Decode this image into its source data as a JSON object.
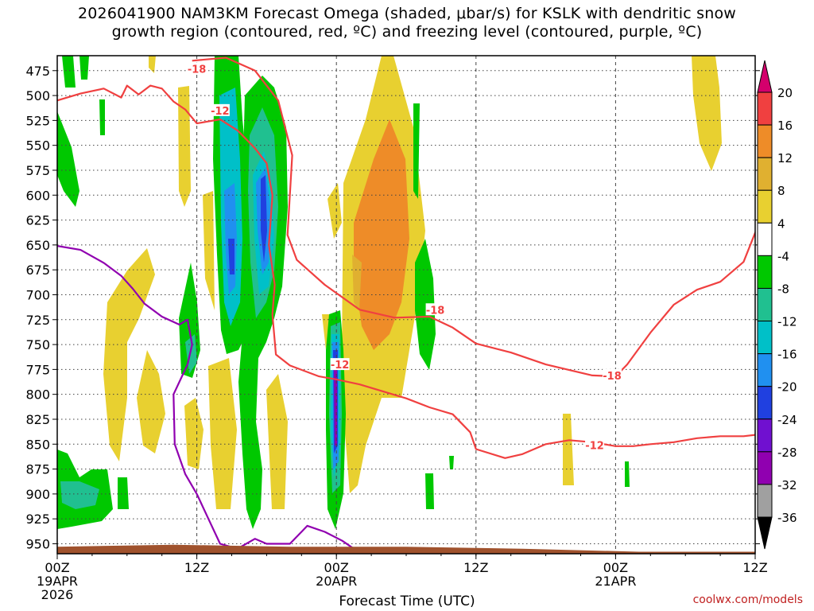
{
  "chart_data": {
    "type": "heatmap",
    "title_line1": "2026041900 NAM3KM Forecast Omega (shaded, μbar/s) for KSLK with dendritic snow",
    "title_line2": "growth region (contoured, red, ºC) and freezing level (contoured, purple, ºC)",
    "xlabel": "Forecast Time (UTC)",
    "ylabel": "",
    "credit": "coolwx.com/models",
    "x_unit": "forecast hour from 2026041900",
    "xlim": [
      0,
      60
    ],
    "ylim": [
      960,
      460
    ],
    "y_ticks": [
      475,
      500,
      525,
      550,
      575,
      600,
      625,
      650,
      675,
      700,
      725,
      750,
      775,
      800,
      825,
      850,
      875,
      900,
      925,
      950
    ],
    "x_ticks": [
      {
        "hour": 0,
        "line1": "00Z",
        "line2": "19APR",
        "line3": "2026"
      },
      {
        "hour": 12,
        "line1": "12Z",
        "line2": "",
        "line3": ""
      },
      {
        "hour": 24,
        "line1": "00Z",
        "line2": "20APR",
        "line3": ""
      },
      {
        "hour": 36,
        "line1": "12Z",
        "line2": "",
        "line3": ""
      },
      {
        "hour": 48,
        "line1": "00Z",
        "line2": "21APR",
        "line3": ""
      },
      {
        "hour": 60,
        "line1": "12Z",
        "line2": "",
        "line3": ""
      }
    ],
    "grid": true,
    "colorbar": {
      "labels": [
        "20",
        "16",
        "12",
        "8",
        "4",
        "-4",
        "-8",
        "-12",
        "-16",
        "-20",
        "-24",
        "-28",
        "-32",
        "-36"
      ],
      "colors": [
        "#d4006c",
        "#f04040",
        "#ee8c28",
        "#e0b030",
        "#e8d030",
        "#ffffff",
        "#00c800",
        "#20c090",
        "#00c0c8",
        "#2090f0",
        "#2040e0",
        "#7010d0",
        "#9000b0",
        "#a0a0a0",
        "#000000"
      ]
    },
    "omega_features": [
      {
        "hour": 15.0,
        "p_top": 470,
        "p_bottom": 930,
        "min": -20,
        "color": "#2040e0"
      },
      {
        "hour": 17.5,
        "p_top": 490,
        "p_bottom": 940,
        "min": -24,
        "color": "#2040e0"
      },
      {
        "hour": 24.0,
        "p_top": 690,
        "p_bottom": 925,
        "min": -28,
        "color": "#9000b0"
      },
      {
        "hour": 26.5,
        "p_top": 560,
        "p_bottom": 870,
        "max": 12,
        "color": "#ee8c28"
      },
      {
        "hour": 57.0,
        "p_top": 470,
        "p_bottom": 560,
        "max": 4,
        "color": "#e8d030"
      },
      {
        "hour": 1.8,
        "p_top": 870,
        "p_bottom": 920,
        "min": -12,
        "color": "#20c090"
      }
    ],
    "series": [
      {
        "name": "-18",
        "color": "#f04040",
        "points": [
          [
            11.6,
            465
          ],
          [
            14.5,
            462
          ],
          [
            17,
            475
          ],
          [
            19,
            505
          ],
          [
            20.2,
            560
          ],
          [
            19.8,
            640
          ],
          [
            20.6,
            665
          ],
          [
            23,
            690
          ],
          [
            26,
            715
          ],
          [
            29,
            723
          ],
          [
            32,
            722
          ],
          [
            34,
            733
          ],
          [
            36,
            749
          ],
          [
            39,
            758
          ],
          [
            42,
            770
          ],
          [
            46,
            781
          ],
          [
            48,
            782
          ],
          [
            49,
            770
          ],
          [
            51,
            738
          ],
          [
            53,
            710
          ],
          [
            55,
            695
          ],
          [
            57,
            687
          ],
          [
            59,
            667
          ],
          [
            60.5,
            623
          ]
        ],
        "labels": [
          {
            "hour": 12,
            "p": 473,
            "text": "-18"
          },
          {
            "hour": 32.5,
            "p": 715,
            "text": "-18"
          },
          {
            "hour": 47.7,
            "p": 781,
            "text": "-18"
          }
        ]
      },
      {
        "name": "-12",
        "color": "#f04040",
        "points": [
          [
            0,
            505
          ],
          [
            2,
            498
          ],
          [
            4,
            493
          ],
          [
            5.5,
            502
          ],
          [
            6,
            490
          ],
          [
            7,
            499
          ],
          [
            8,
            490
          ],
          [
            9,
            493
          ],
          [
            10,
            506
          ],
          [
            11,
            514
          ],
          [
            12,
            528
          ],
          [
            14,
            524
          ],
          [
            15.5,
            535
          ],
          [
            17,
            553
          ],
          [
            18,
            568
          ],
          [
            18.5,
            600
          ],
          [
            18.2,
            650
          ],
          [
            18.7,
            690
          ],
          [
            18.5,
            720
          ],
          [
            18.8,
            760
          ],
          [
            20,
            771
          ],
          [
            22.5,
            782
          ],
          [
            24,
            785
          ],
          [
            26,
            790
          ],
          [
            28,
            797
          ],
          [
            30,
            804
          ],
          [
            32,
            813
          ],
          [
            34,
            820
          ],
          [
            35.5,
            838
          ],
          [
            36,
            855
          ],
          [
            38.5,
            864
          ],
          [
            40,
            860
          ],
          [
            42,
            850
          ],
          [
            44,
            846
          ],
          [
            46,
            848
          ],
          [
            48,
            852
          ],
          [
            49.5,
            852
          ],
          [
            51,
            850
          ],
          [
            53,
            848
          ],
          [
            55,
            844
          ],
          [
            57,
            842
          ],
          [
            59,
            842
          ],
          [
            60.5,
            840
          ]
        ],
        "labels": [
          {
            "hour": 14,
            "p": 515,
            "text": "-12"
          },
          {
            "hour": 24.3,
            "p": 770,
            "text": "-12"
          },
          {
            "hour": 46.2,
            "p": 851,
            "text": "-12"
          }
        ]
      },
      {
        "name": "freezing level",
        "color": "#9000b0",
        "points": [
          [
            0,
            651
          ],
          [
            2,
            655
          ],
          [
            4,
            668
          ],
          [
            5.5,
            681
          ],
          [
            6.5,
            694
          ],
          [
            7.5,
            709
          ],
          [
            9,
            722
          ],
          [
            10.5,
            730
          ],
          [
            11.2,
            725
          ],
          [
            11.6,
            750
          ],
          [
            11.2,
            770
          ],
          [
            10,
            800
          ],
          [
            10.1,
            850
          ],
          [
            11,
            880
          ],
          [
            12,
            900
          ],
          [
            13,
            925
          ],
          [
            14,
            950
          ],
          [
            15.5,
            955
          ],
          [
            17,
            945
          ],
          [
            18,
            950
          ],
          [
            20,
            950
          ],
          [
            21.5,
            932
          ],
          [
            23,
            938
          ],
          [
            24.5,
            947
          ],
          [
            25.5,
            955
          ]
        ],
        "labels": []
      }
    ],
    "terrain": {
      "color": "#a0522d",
      "top_p": [
        [
          0,
          953
        ],
        [
          10,
          951
        ],
        [
          20,
          953
        ],
        [
          30,
          953
        ],
        [
          40,
          955
        ],
        [
          50,
          958
        ],
        [
          60,
          958
        ]
      ]
    }
  }
}
